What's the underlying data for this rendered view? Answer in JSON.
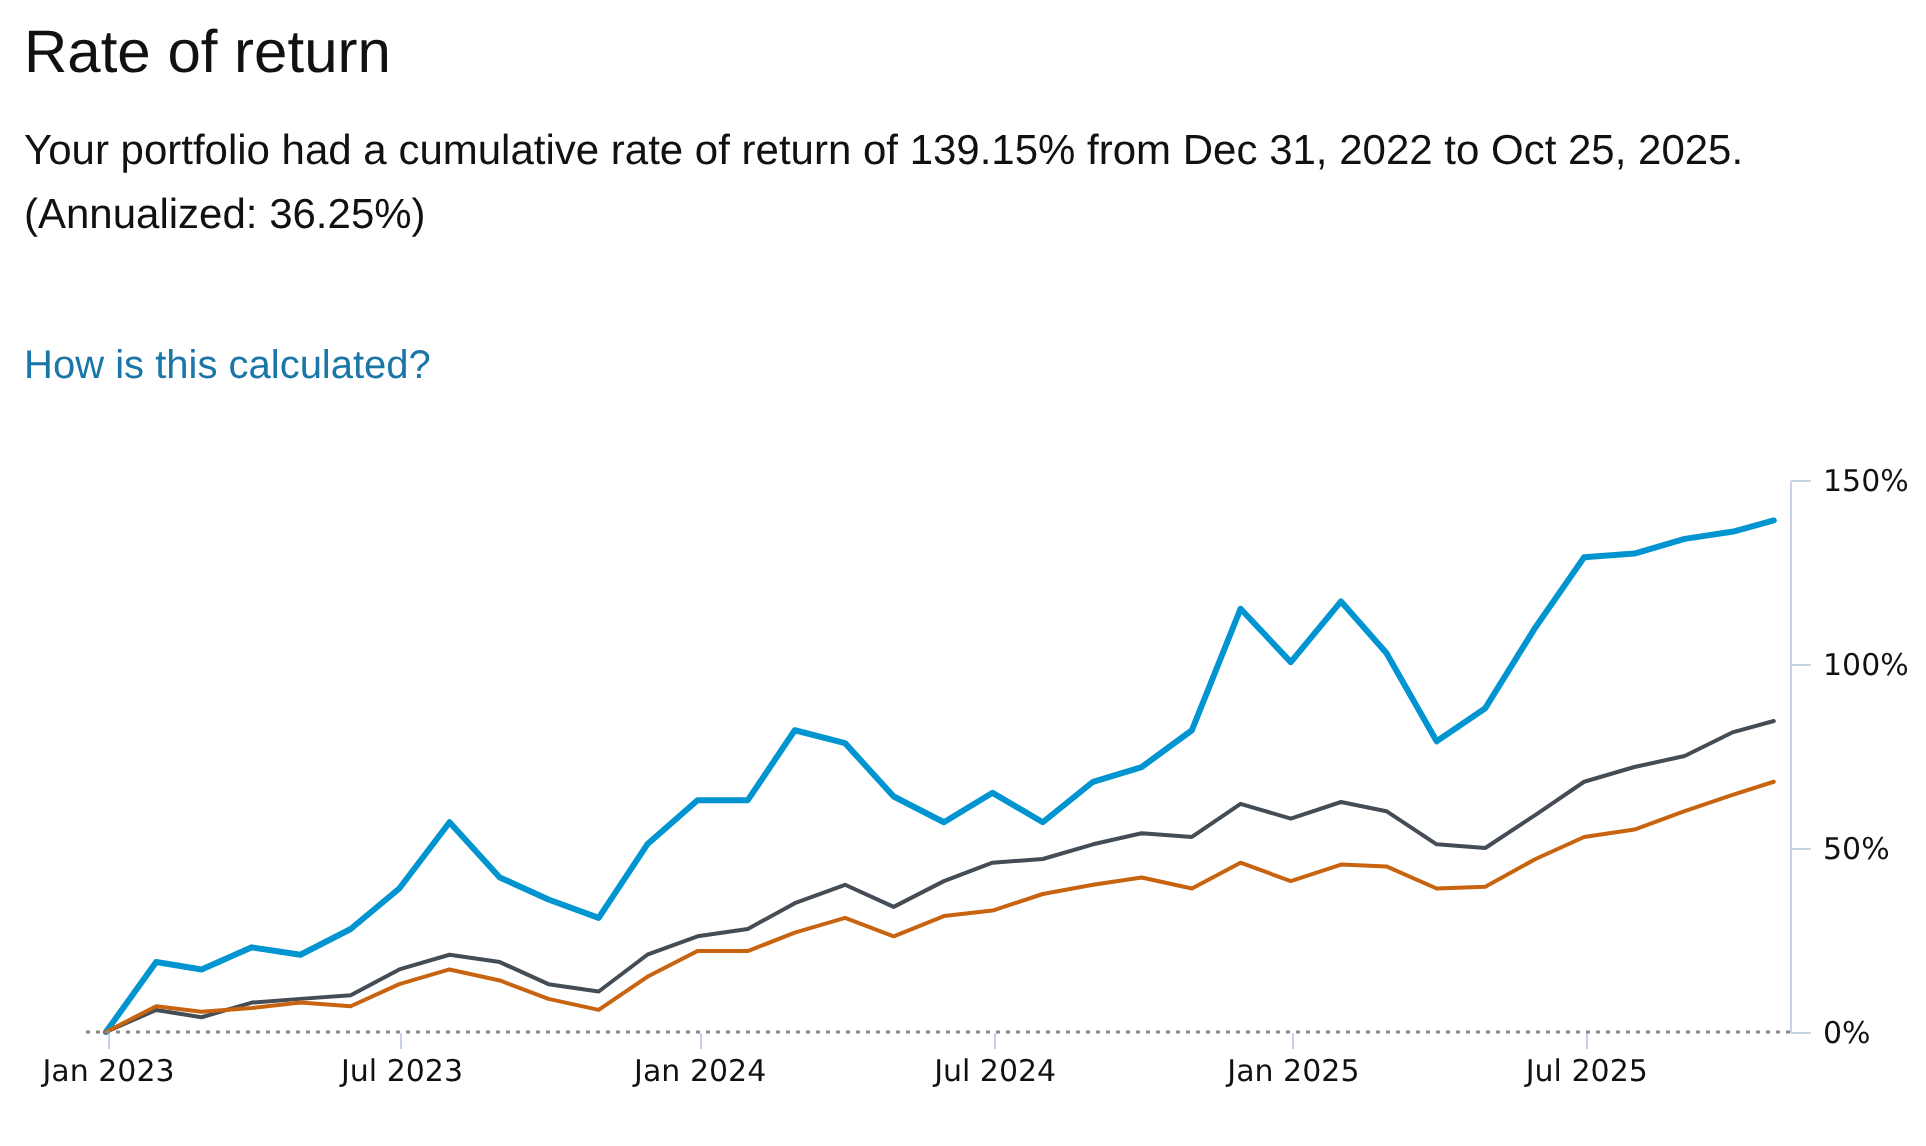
{
  "chart_data": {
    "type": "line",
    "title": "Rate of return",
    "subtitle": "Your portfolio had a cumulative rate of return of 139.15% from Dec 31, 2022 to Oct 25, 2025. (Annualized: 36.25%)",
    "annotations": [
      "How is this calculated?"
    ],
    "x": [
      "2022-12-31",
      "2023-01-31",
      "2023-02-28",
      "2023-03-31",
      "2023-04-30",
      "2023-05-31",
      "2023-06-30",
      "2023-07-31",
      "2023-08-31",
      "2023-09-30",
      "2023-10-31",
      "2023-11-30",
      "2023-12-31",
      "2024-01-31",
      "2024-02-29",
      "2024-03-31",
      "2024-04-30",
      "2024-05-31",
      "2024-06-30",
      "2024-07-31",
      "2024-08-31",
      "2024-09-30",
      "2024-10-31",
      "2024-11-30",
      "2024-12-31",
      "2025-01-31",
      "2025-02-28",
      "2025-03-31",
      "2025-04-30",
      "2025-05-31",
      "2025-06-30",
      "2025-07-31",
      "2025-08-31",
      "2025-09-30",
      "2025-10-25"
    ],
    "series": [
      {
        "color": "#0095d0",
        "values": [
          0,
          19,
          17,
          23,
          21,
          28,
          39,
          57,
          42,
          36,
          31,
          51,
          63,
          63,
          82,
          78.5,
          64,
          57,
          65,
          57,
          68,
          72,
          82,
          115,
          100.5,
          117,
          103,
          79,
          88,
          110,
          129,
          130,
          134,
          136,
          139
        ]
      },
      {
        "color": "#444c55",
        "values": [
          0,
          6,
          4,
          8,
          9,
          10,
          17,
          21,
          19,
          13,
          11,
          21,
          26,
          28,
          35,
          40,
          34,
          41,
          46,
          47,
          51,
          54,
          53,
          62,
          58,
          62.5,
          60,
          51,
          50,
          59,
          68,
          72,
          75,
          81.5,
          84.5
        ]
      },
      {
        "color": "#c8640f",
        "values": [
          0,
          7,
          5.5,
          6.5,
          8,
          7,
          13,
          17,
          14,
          9,
          6,
          15,
          22,
          22,
          27,
          31,
          26,
          31.5,
          33,
          37.5,
          40,
          42,
          39,
          46,
          41,
          45.5,
          45,
          39,
          39.5,
          47,
          53,
          55,
          60,
          64.5,
          68
        ]
      }
    ],
    "xlim": [
      "2022-12-15",
      "2025-11-04"
    ],
    "xticks": [
      {
        "value": "2023-01-01",
        "label": "Jan 2023"
      },
      {
        "value": "2023-07-01",
        "label": "Jul 2023"
      },
      {
        "value": "2024-01-01",
        "label": "Jan 2024"
      },
      {
        "value": "2024-07-01",
        "label": "Jul 2024"
      },
      {
        "value": "2025-01-01",
        "label": "Jan 2025"
      },
      {
        "value": "2025-07-01",
        "label": "Jul 2025"
      }
    ],
    "ylim": [
      0,
      150
    ],
    "yticks": [
      {
        "value": 0,
        "label": "0%"
      },
      {
        "value": 50,
        "label": "50%"
      },
      {
        "value": 100,
        "label": "100%"
      },
      {
        "value": 150,
        "label": "150%"
      }
    ],
    "ref_lines": [
      {
        "axis": "y",
        "value": 0,
        "color": "#888888",
        "line_style": "dotted"
      }
    ],
    "grid": false,
    "marker": "none",
    "line_style": "solid"
  }
}
